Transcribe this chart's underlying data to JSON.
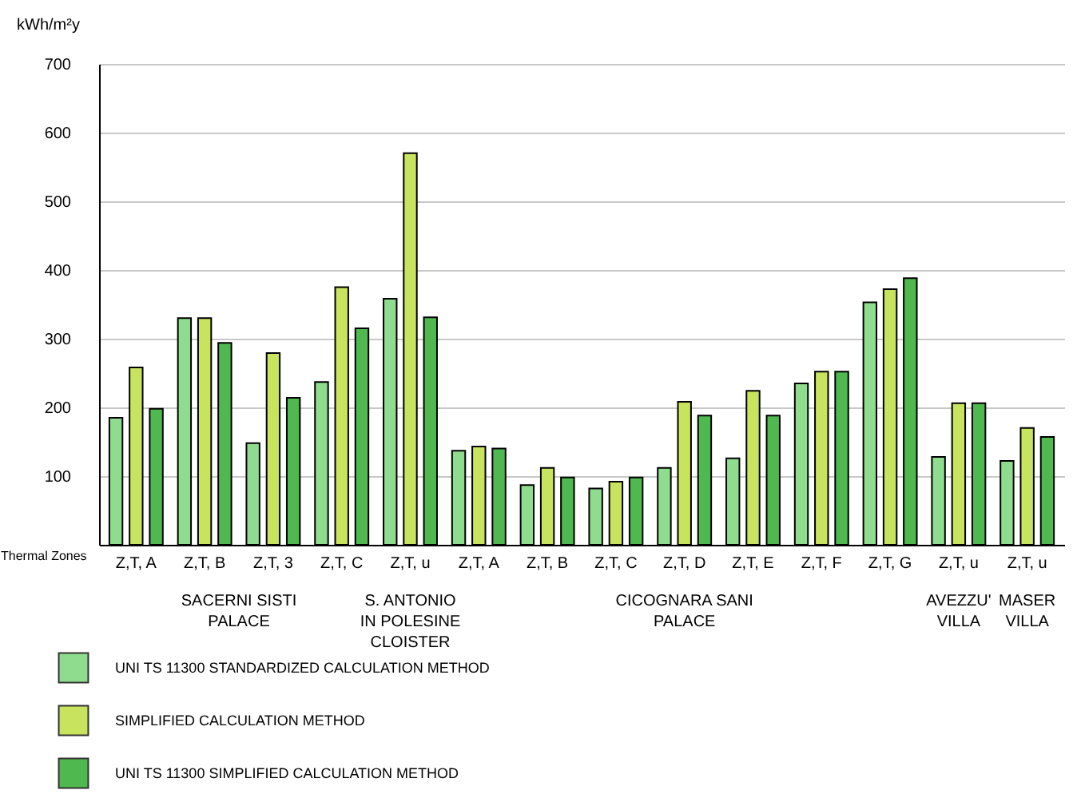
{
  "chart_data": {
    "type": "bar",
    "ylabel": "kWh/m²y",
    "xlabel": "Thermal Zones",
    "categories": [
      "Z,T, A",
      "Z,T, B",
      "Z,T, 3",
      "Z,T, C",
      "Z,T, u",
      "Z,T, A",
      "Z,T, B",
      "Z,T, C",
      "Z,T, D",
      "Z,T, E",
      "Z,T, F",
      "Z,T, G",
      "Z,T, u",
      "Z,T, u"
    ],
    "series": [
      {
        "name": "UNI TS 11300 STANDARDIZED CALCULATION METHOD",
        "color": "#8fdc8f",
        "values": [
          185,
          330,
          148,
          237,
          358,
          137,
          87,
          82,
          112,
          126,
          235,
          353,
          128,
          122
        ]
      },
      {
        "name": "SIMPLIFIED CALCULATION METHOD",
        "color": "#c8e35e",
        "values": [
          258,
          330,
          279,
          375,
          570,
          143,
          112,
          92,
          208,
          224,
          252,
          372,
          206,
          170
        ]
      },
      {
        "name": "UNI TS 11300 SIMPLIFIED CALCULATION METHOD",
        "color": "#4fb84f",
        "values": [
          198,
          294,
          214,
          315,
          331,
          140,
          98,
          98,
          188,
          188,
          252,
          388,
          206,
          157
        ]
      }
    ],
    "annotations": [
      "SACERNI SISTI\nPALACE",
      "S. ANTONIO\nIN POLESINE\nCLOISTER",
      "CICOGNARA SANI\nPALACE",
      "AVEZZU'\nVILLA",
      "MASER\nVILLA"
    ],
    "ylim": [
      0,
      700
    ],
    "yticks": [
      100,
      200,
      300,
      400,
      500,
      600,
      700
    ],
    "grid": "y",
    "legend": "bottom"
  }
}
